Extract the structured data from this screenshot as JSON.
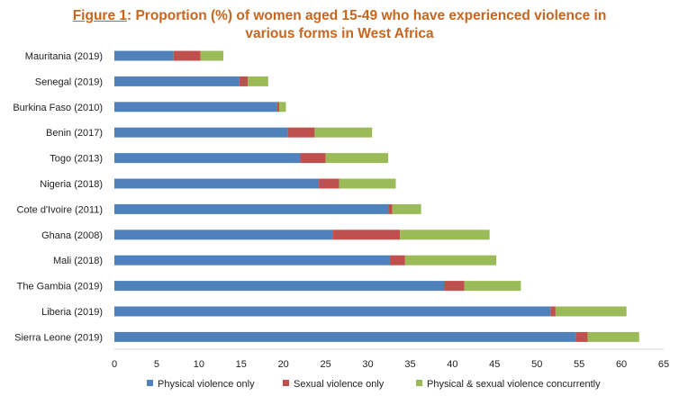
{
  "title": {
    "prefix": "Figure 1",
    "line1": ": Proportion (%) of women aged 15-49 who have experienced violence in",
    "line2": "various forms in West Africa"
  },
  "chart_data": {
    "type": "bar",
    "orientation": "horizontal",
    "stacked": true,
    "categories": [
      "Mauritania (2019)",
      "Senegal (2019)",
      "Burkina Faso (2010)",
      "Benin (2017)",
      "Togo (2013)",
      "Nigeria (2018)",
      "Cote d'Ivoire (2011)",
      "Ghana (2008)",
      "Mali (2018)",
      "The Gambia (2019)",
      "Liberia (2019)",
      "Sierra Leone (2019)"
    ],
    "series": [
      {
        "name": "Physical violence only",
        "color": "#4f81bd",
        "values": [
          7,
          14.8,
          19.2,
          20.5,
          22,
          24.2,
          32.4,
          25.8,
          32.6,
          39,
          51.6,
          54.6
        ]
      },
      {
        "name": "Sexual violence only",
        "color": "#c0504d",
        "values": [
          3.2,
          1,
          0.3,
          3.2,
          3,
          2.4,
          0.5,
          8,
          1.8,
          2.4,
          0.6,
          1.4
        ]
      },
      {
        "name": "Physical & sexual violence concurrently",
        "color": "#9bbb59",
        "values": [
          2.7,
          2.4,
          0.8,
          6.8,
          7.4,
          6.7,
          3.4,
          10.6,
          10.8,
          6.7,
          8.4,
          6.1
        ]
      }
    ],
    "xlim": [
      0,
      65
    ],
    "xticks": [
      0,
      5,
      10,
      15,
      20,
      25,
      30,
      35,
      40,
      45,
      50,
      55,
      60,
      65
    ],
    "xlabel": "",
    "ylabel": "",
    "grid": false,
    "legend_position": "bottom"
  }
}
